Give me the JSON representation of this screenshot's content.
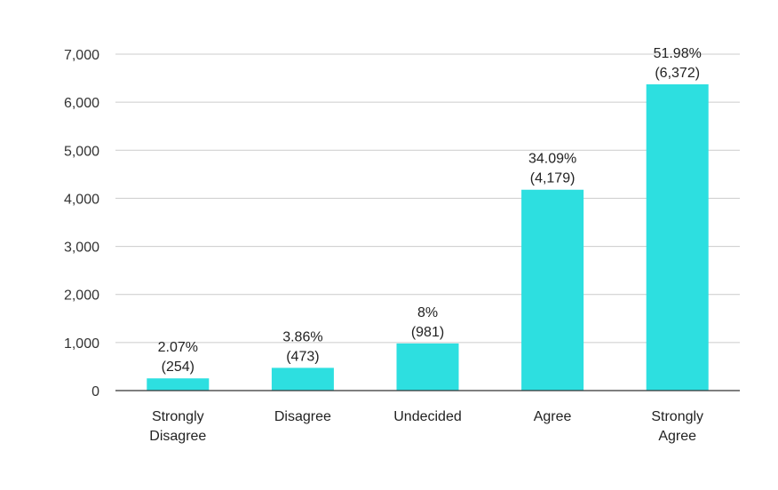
{
  "chart_data": {
    "type": "bar",
    "categories": [
      "Strongly Disagree",
      "Disagree",
      "Undecided",
      "Agree",
      "Strongly Agree"
    ],
    "category_lines": [
      [
        "Strongly",
        "Disagree"
      ],
      [
        "Disagree"
      ],
      [
        "Undecided"
      ],
      [
        "Agree"
      ],
      [
        "Strongly",
        "Agree"
      ]
    ],
    "values": [
      254,
      473,
      981,
      4179,
      6372
    ],
    "percent_labels": [
      "2.07%",
      "3.86%",
      "8%",
      "34.09%",
      "51.98%"
    ],
    "count_labels": [
      "(254)",
      "(473)",
      "(981)",
      "(4,179)",
      "(6,372)"
    ],
    "ylim": [
      0,
      7000
    ],
    "yticks": [
      0,
      1000,
      2000,
      3000,
      4000,
      5000,
      6000,
      7000
    ],
    "ytick_labels": [
      "0",
      "1,000",
      "2,000",
      "3,000",
      "4,000",
      "5,000",
      "6,000",
      "7,000"
    ],
    "grid": true,
    "colors": {
      "bar": "#2ddfe0"
    }
  }
}
